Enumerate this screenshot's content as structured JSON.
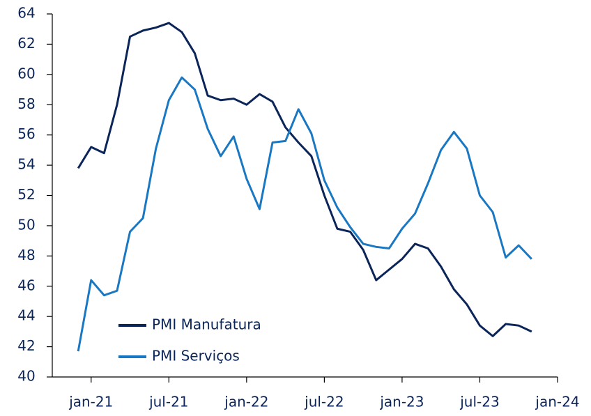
{
  "chart_data": {
    "type": "line",
    "x": [
      "2020-12",
      "2021-01",
      "2021-02",
      "2021-03",
      "2021-04",
      "2021-05",
      "2021-06",
      "2021-07",
      "2021-08",
      "2021-09",
      "2021-10",
      "2021-11",
      "2021-12",
      "2022-01",
      "2022-02",
      "2022-03",
      "2022-04",
      "2022-05",
      "2022-06",
      "2022-07",
      "2022-08",
      "2022-09",
      "2022-10",
      "2022-11",
      "2022-12",
      "2023-01",
      "2023-02",
      "2023-03",
      "2023-04",
      "2023-05",
      "2023-06",
      "2023-07",
      "2023-08",
      "2023-09",
      "2023-10",
      "2023-11"
    ],
    "series": [
      {
        "name": "PMI Manufatura",
        "color": "#0b2559",
        "values": [
          53.8,
          55.2,
          54.8,
          58.0,
          62.5,
          62.9,
          63.1,
          63.4,
          62.8,
          61.4,
          58.6,
          58.3,
          58.4,
          58.0,
          58.7,
          58.2,
          56.5,
          55.5,
          54.6,
          52.0,
          49.8,
          49.6,
          48.4,
          46.4,
          47.1,
          47.8,
          48.8,
          48.5,
          47.3,
          45.8,
          44.8,
          43.4,
          42.7,
          43.5,
          43.4,
          43.0
        ]
      },
      {
        "name": "PMI Serviços",
        "color": "#1a78c2",
        "values": [
          41.7,
          46.4,
          45.4,
          45.7,
          49.6,
          50.5,
          55.1,
          58.3,
          59.8,
          59.0,
          56.4,
          54.6,
          55.9,
          53.1,
          51.1,
          55.5,
          55.6,
          57.7,
          56.1,
          53.0,
          51.2,
          49.9,
          48.8,
          48.6,
          48.5,
          49.8,
          50.8,
          52.8,
          55.0,
          56.2,
          55.1,
          52.0,
          50.9,
          47.9,
          48.7,
          47.8
        ]
      }
    ],
    "xlim": [
      "2020-10",
      "2024-01"
    ],
    "xticks": [
      {
        "value": "2021-01",
        "label": "jan-21"
      },
      {
        "value": "2021-07",
        "label": "jul-21"
      },
      {
        "value": "2022-01",
        "label": "jan-22"
      },
      {
        "value": "2022-07",
        "label": "jul-22"
      },
      {
        "value": "2023-01",
        "label": "jan-23"
      },
      {
        "value": "2023-07",
        "label": "jul-23"
      },
      {
        "value": "2024-01",
        "label": "jan-24"
      }
    ],
    "ylim": [
      40,
      64
    ],
    "yticks": [
      40,
      42,
      44,
      46,
      48,
      50,
      52,
      54,
      56,
      58,
      60,
      62,
      64
    ],
    "legend": "lower left"
  }
}
